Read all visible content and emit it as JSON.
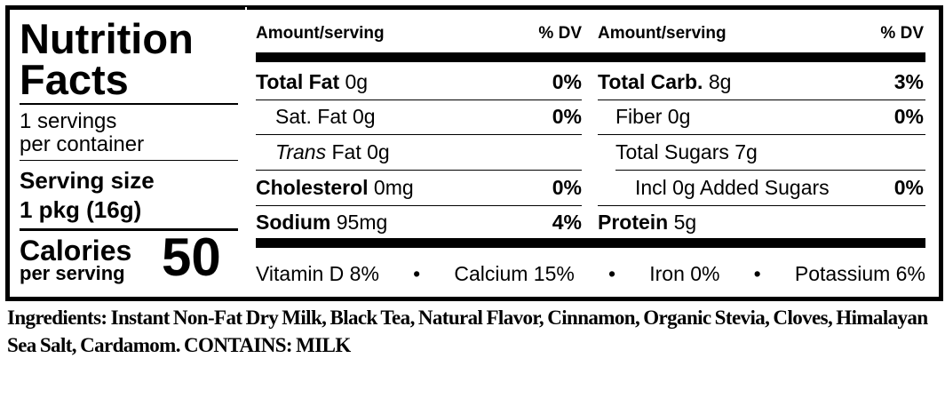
{
  "panel": {
    "title": "Nutrition",
    "title2": "Facts",
    "servings": "1 servings",
    "servings2": "per container",
    "serving_size_label": "Serving size",
    "serving_size": "1 pkg (16g)",
    "calories_label": "Calories",
    "calories_sub": "per serving",
    "calories": "50"
  },
  "table": {
    "header": {
      "amount": "Amount/serving",
      "dv": "% DV"
    },
    "left": [
      {
        "label": "Total Fat",
        "amount": "0g",
        "dv": "0%"
      },
      {
        "label": "Sat. Fat",
        "amount": "0g",
        "dv": "0%"
      },
      {
        "label_italic": "Trans",
        "label": "Fat",
        "amount": "0g"
      },
      {
        "label": "Cholesterol",
        "amount": "0mg",
        "dv": "0%"
      },
      {
        "label": "Sodium",
        "amount": "95mg",
        "dv": "4%"
      }
    ],
    "right": [
      {
        "label": "Total Carb.",
        "amount": "8g",
        "dv": "3%"
      },
      {
        "label": "Fiber",
        "amount": "0g",
        "dv": "0%"
      },
      {
        "label": "Total Sugars",
        "amount": "7g"
      },
      {
        "label": "Incl 0g Added Sugars",
        "dv": "0%"
      },
      {
        "label": "Protein",
        "amount": "5g"
      }
    ]
  },
  "vitamins": [
    "Vitamin D 8%",
    "Calcium 15%",
    "Iron 0%",
    "Potassium 6%"
  ],
  "ingredients": "Ingredients: Instant Non-Fat Dry Milk, Black Tea, Natural Flavor, Cinnamon, Organic Stevia, Cloves, Himalayan Sea Salt, Cardamom. CONTAINS: MILK"
}
